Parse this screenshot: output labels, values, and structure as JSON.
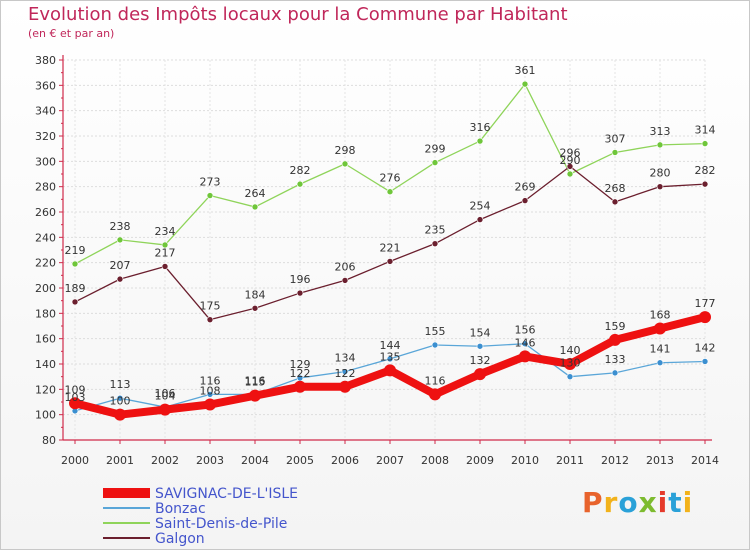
{
  "title": "Evolution des Impôts locaux pour la Commune par Habitant",
  "subtitle": "(en € et par an)",
  "logo": {
    "text": "Proxiti",
    "colors": [
      "#e8632c",
      "#f2b21b",
      "#2aa1d8",
      "#7dbb2f",
      "#e53a2b",
      "#2aa1d8",
      "#f2b21b"
    ]
  },
  "chart_data": {
    "type": "line",
    "x": [
      2000,
      2001,
      2002,
      2003,
      2004,
      2005,
      2006,
      2007,
      2008,
      2009,
      2010,
      2011,
      2012,
      2013,
      2014
    ],
    "ylim": [
      80,
      380
    ],
    "yticks": [
      80,
      100,
      120,
      140,
      160,
      180,
      200,
      220,
      240,
      260,
      280,
      300,
      320,
      340,
      360,
      380
    ],
    "grid": true,
    "legend": "bottom-left",
    "series": [
      {
        "name": "Saint-Denis-de-Pile",
        "color": "#8fd45a",
        "marker": "#6fc63a",
        "width": 1.3,
        "labels": true,
        "values": [
          219,
          238,
          234,
          273,
          264,
          282,
          298,
          276,
          299,
          316,
          361,
          290,
          307,
          313,
          314
        ]
      },
      {
        "name": "Galgon",
        "color": "#6b1f2e",
        "marker": "#6b1f2e",
        "width": 1.3,
        "labels": true,
        "values": [
          189,
          207,
          217,
          175,
          184,
          196,
          206,
          221,
          235,
          254,
          269,
          296,
          268,
          280,
          282
        ]
      },
      {
        "name": "Bonzac",
        "color": "#5aa6d8",
        "marker": "#3b8fd0",
        "width": 1.3,
        "labels": true,
        "values": [
          103,
          113,
          106,
          116,
          116,
          129,
          134,
          144,
          155,
          154,
          156,
          130,
          133,
          141,
          142
        ]
      },
      {
        "name": "SAVIGNAC-DE-L'ISLE",
        "color": "#ee1111",
        "marker": "#ee1111",
        "width": 8,
        "labels": true,
        "values": [
          109,
          100,
          104,
          108,
          115,
          122,
          122,
          135,
          116,
          132,
          146,
          140,
          159,
          168,
          177
        ]
      }
    ],
    "legend_order": [
      "SAVIGNAC-DE-L'ISLE",
      "Bonzac",
      "Saint-Denis-de-Pile",
      "Galgon"
    ]
  }
}
